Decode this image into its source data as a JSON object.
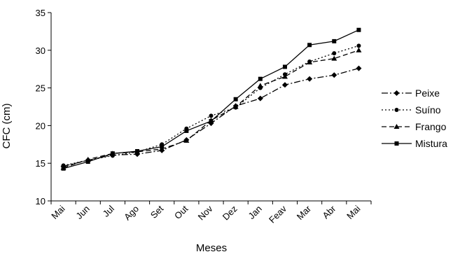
{
  "chart_data": {
    "type": "line",
    "title": "",
    "xlabel": "Meses",
    "ylabel": "CFC (cm)",
    "categories": [
      "Mai",
      "Jun",
      "Jul",
      "Ago",
      "Set",
      "Out",
      "Nov",
      "Dez",
      "Jan",
      "Feav",
      "Mar",
      "Abr",
      "Mai"
    ],
    "ylim": [
      10,
      35
    ],
    "yticks": [
      10,
      15,
      20,
      25,
      30,
      35
    ],
    "grid": false,
    "legend_position": "right",
    "series": [
      {
        "name": "Peixe",
        "line_style": "dash-dot",
        "marker": "diamond",
        "values": [
          14.6,
          15.4,
          16.1,
          16.2,
          16.7,
          18.1,
          20.3,
          22.6,
          23.6,
          25.4,
          26.2,
          26.7,
          27.6
        ]
      },
      {
        "name": "Suíno",
        "line_style": "dotted",
        "marker": "circle",
        "values": [
          14.7,
          15.4,
          16.0,
          16.5,
          17.5,
          19.6,
          21.3,
          22.4,
          25.0,
          26.8,
          28.5,
          29.6,
          30.6
        ]
      },
      {
        "name": "Frango",
        "line_style": "dashed",
        "marker": "triangle",
        "values": [
          14.4,
          15.5,
          16.3,
          16.5,
          16.9,
          18.0,
          20.7,
          22.5,
          25.3,
          26.5,
          28.4,
          28.9,
          30.0
        ]
      },
      {
        "name": "Mistura",
        "line_style": "solid",
        "marker": "square",
        "values": [
          14.3,
          15.2,
          16.3,
          16.6,
          17.2,
          19.3,
          20.6,
          23.5,
          26.2,
          27.8,
          30.7,
          31.2,
          32.7
        ]
      }
    ]
  }
}
